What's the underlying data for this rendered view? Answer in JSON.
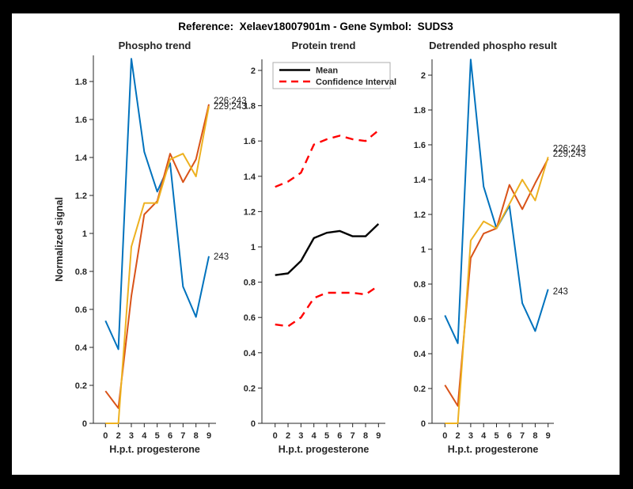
{
  "figure": {
    "title": "Reference:  Xelaev18007901m - Gene Symbol:  SUDS3"
  },
  "colors": {
    "blue": "#0072BD",
    "orange": "#D95319",
    "yellow": "#EDB120",
    "ci_red": "#FF0000",
    "mean_black": "#000000",
    "axis": "#262626",
    "canvas_bg": "#FFFFFF",
    "figure_border": "#000000"
  },
  "x_axis": {
    "label": "H.p.t. progesterone",
    "tick_labels": [
      "0",
      "2",
      "3",
      "4",
      "5",
      "6",
      "7",
      "8",
      "9"
    ]
  },
  "chart_data": [
    {
      "type": "line",
      "title": "Phospho trend",
      "xlabel": "H.p.t. progesterone",
      "ylabel": "Normalized signal",
      "categories": [
        0,
        2,
        3,
        4,
        5,
        6,
        7,
        8,
        9
      ],
      "ylim": [
        0,
        1.94
      ],
      "grid": false,
      "ytick_labels": [
        "0",
        "0.2",
        "0.4",
        "0.6",
        "0.8",
        "1",
        "1.2",
        "1.4",
        "1.6",
        "1.8"
      ],
      "series": [
        {
          "name": "243",
          "color_key": "blue",
          "style": "solid",
          "values": [
            0.54,
            0.39,
            1.92,
            1.43,
            1.22,
            1.37,
            0.72,
            0.56,
            0.88
          ]
        },
        {
          "name": "226;243",
          "color_key": "orange",
          "style": "solid",
          "values": [
            0.17,
            0.08,
            0.67,
            1.1,
            1.17,
            1.42,
            1.27,
            1.39,
            1.68
          ]
        },
        {
          "name": "229;243",
          "color_key": "yellow",
          "style": "solid",
          "values": [
            0.0,
            0.0,
            0.93,
            1.16,
            1.16,
            1.39,
            1.42,
            1.3,
            1.67
          ]
        }
      ],
      "annotations": [
        {
          "text": "226;243",
          "value": 1.7
        },
        {
          "text": "229;243",
          "value": 1.67
        },
        {
          "text": "243",
          "value": 0.88
        }
      ]
    },
    {
      "type": "line",
      "title": "Protein trend",
      "xlabel": "H.p.t. progesterone",
      "ylabel": null,
      "categories": [
        0,
        2,
        3,
        4,
        5,
        6,
        7,
        8,
        9
      ],
      "ylim": [
        0,
        2.06
      ],
      "grid": false,
      "ytick_labels": [
        "0",
        "0.2",
        "0.4",
        "0.6",
        "0.8",
        "1",
        "1.2",
        "1.4",
        "1.6",
        "1.8",
        "2"
      ],
      "series": [
        {
          "name": "Mean",
          "color_key": "mean_black",
          "style": "solid",
          "width": 2.4,
          "values": [
            0.84,
            0.85,
            0.92,
            1.05,
            1.08,
            1.09,
            1.06,
            1.06,
            1.13
          ]
        },
        {
          "name": "Confidence Interval (upper)",
          "color_key": "ci_red",
          "style": "dashed",
          "width": 2.4,
          "values": [
            1.34,
            1.37,
            1.42,
            1.58,
            1.61,
            1.63,
            1.61,
            1.6,
            1.66
          ]
        },
        {
          "name": "Confidence Interval (lower)",
          "color_key": "ci_red",
          "style": "dashed",
          "width": 2.4,
          "values": [
            0.56,
            0.55,
            0.6,
            0.71,
            0.74,
            0.74,
            0.74,
            0.73,
            0.78
          ]
        }
      ],
      "legend": {
        "position": "northwest",
        "entries": [
          {
            "label": "Mean",
            "color_key": "mean_black",
            "style": "solid"
          },
          {
            "label": "Confidence Interval",
            "color_key": "ci_red",
            "style": "dashed"
          }
        ]
      },
      "annotations": []
    },
    {
      "type": "line",
      "title": "Detrended phospho result",
      "xlabel": "H.p.t. progesterone",
      "ylabel": null,
      "categories": [
        0,
        2,
        3,
        4,
        5,
        6,
        7,
        8,
        9
      ],
      "ylim": [
        0,
        2.09
      ],
      "grid": false,
      "ytick_labels": [
        "0",
        "0.2",
        "0.4",
        "0.6",
        "0.8",
        "1",
        "1.2",
        "1.4",
        "1.6",
        "1.8",
        "2"
      ],
      "series": [
        {
          "name": "243",
          "color_key": "blue",
          "style": "solid",
          "values": [
            0.62,
            0.46,
            2.09,
            1.36,
            1.12,
            1.25,
            0.69,
            0.53,
            0.77
          ]
        },
        {
          "name": "226;243",
          "color_key": "orange",
          "style": "solid",
          "values": [
            0.22,
            0.1,
            0.95,
            1.09,
            1.12,
            1.37,
            1.23,
            1.38,
            1.52
          ]
        },
        {
          "name": "229;243",
          "color_key": "yellow",
          "style": "solid",
          "values": [
            0.0,
            0.0,
            1.05,
            1.16,
            1.12,
            1.26,
            1.4,
            1.28,
            1.53
          ]
        }
      ],
      "annotations": [
        {
          "text": "226;243",
          "value": 1.58
        },
        {
          "text": "229;243",
          "value": 1.55
        },
        {
          "text": "243",
          "value": 0.76
        }
      ]
    }
  ]
}
